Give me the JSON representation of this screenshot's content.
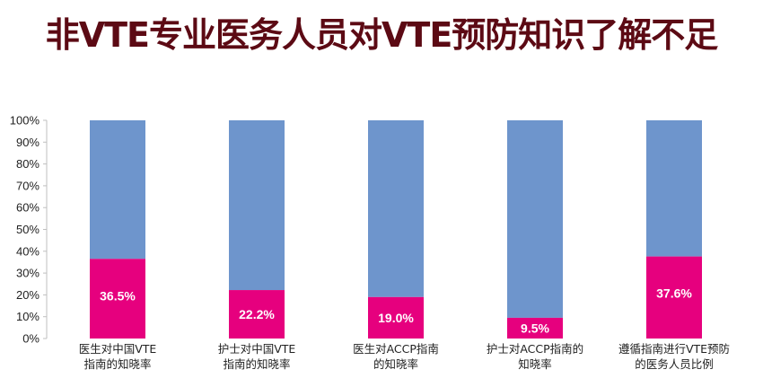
{
  "chart_data": {
    "type": "bar",
    "stacked": true,
    "title": "非VTE专业医务人员对VTE预防知识了解不足",
    "categories": [
      [
        "医生对中国VTE",
        "指南的知晓率"
      ],
      [
        "护士对中国VTE",
        "指南的知晓率"
      ],
      [
        "医生对ACCP指南",
        "的知晓率"
      ],
      [
        "护士对ACCP指南的",
        "知晓率"
      ],
      [
        "遵循指南进行VTE预防",
        "的医务人员比例"
      ]
    ],
    "values": [
      36.5,
      22.2,
      19.0,
      9.5,
      37.6
    ],
    "value_labels": [
      "36.5%",
      "22.2%",
      "19.0%",
      "9.5%",
      "37.6%"
    ],
    "ylim": [
      0,
      100
    ],
    "yticks": [
      "0%",
      "10%",
      "20%",
      "30%",
      "40%",
      "50%",
      "60%",
      "70%",
      "80%",
      "90%",
      "100%"
    ],
    "grid": false,
    "legend": "none",
    "colors": {
      "value": "#e6007e",
      "remainder": "#6e95cc",
      "title": "#5c0a14"
    }
  }
}
